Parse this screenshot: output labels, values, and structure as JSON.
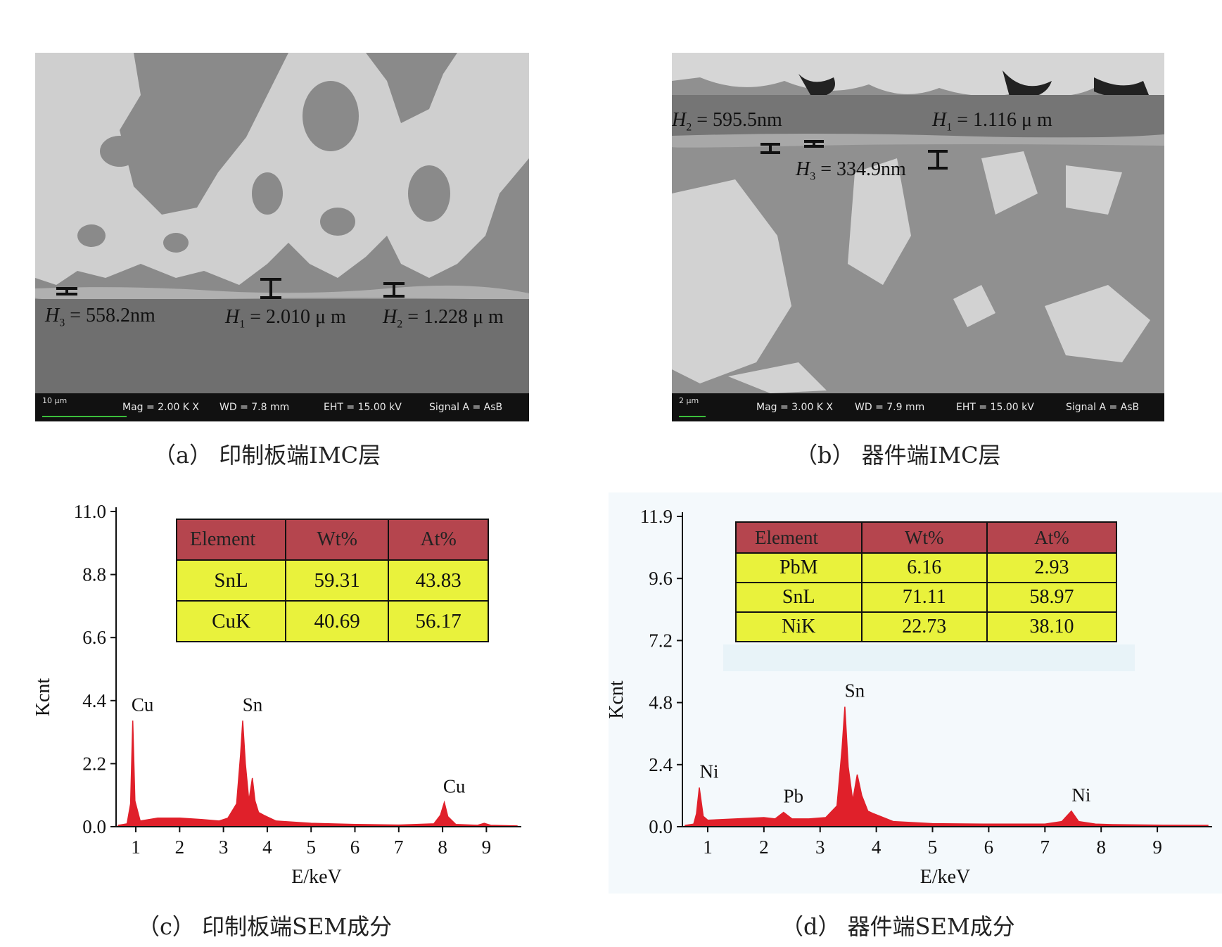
{
  "panels": {
    "a": {
      "caption": "（a）  印制板端IMC层",
      "info": {
        "scale": "10 μm",
        "mag": "Mag =    2.00 K X",
        "wd": "WD =  7.8 mm",
        "eht": "EHT = 15.00 kV",
        "signal": "Signal A = AsB"
      },
      "labels": {
        "h3_var": "H",
        "h3_sub": "3",
        "h3_val": " = 558.2nm",
        "h1_var": "H",
        "h1_sub": "1",
        "h1_val": " = 2.010 μ m",
        "h2_var": "H",
        "h2_sub": "2",
        "h2_val": " = 1.228 μ m"
      }
    },
    "b": {
      "caption": "（b）  器件端IMC层",
      "info": {
        "scale": "2 μm",
        "mag": "Mag =    3.00 K X",
        "wd": "WD =  7.9 mm",
        "eht": "EHT = 15.00 kV",
        "signal": "Signal A = AsB"
      },
      "labels": {
        "h2_var": "H",
        "h2_sub": "2",
        "h2_val": " = 595.5nm",
        "h1_var": "H",
        "h1_sub": "1",
        "h1_val": " = 1.116 μ m",
        "h3_var": "H",
        "h3_sub": "3",
        "h3_val": " = 334.9nm"
      }
    },
    "c": {
      "caption": "（c）  印制板端SEM成分",
      "table": {
        "headers": [
          "Element",
          "Wt%",
          "At%"
        ],
        "rows": [
          [
            "SnL",
            "59.31",
            "43.83"
          ],
          [
            "CuK",
            "40.69",
            "56.17"
          ]
        ]
      }
    },
    "d": {
      "caption": "（d）  器件端SEM成分",
      "table": {
        "headers": [
          "Element",
          "Wt%",
          "At%"
        ],
        "rows": [
          [
            "PbM",
            "6.16",
            "2.93"
          ],
          [
            "SnL",
            "71.11",
            "58.97"
          ],
          [
            "NiK",
            "22.73",
            "38.10"
          ]
        ]
      }
    }
  },
  "chart_data": [
    {
      "type": "line",
      "xlabel": "E/keV",
      "ylabel": "Kcnt",
      "xlim": [
        0.55,
        9.7
      ],
      "ylim": [
        0.0,
        11.0
      ],
      "yticks": [
        "0.0",
        "2.2",
        "4.4",
        "6.6",
        "8.8",
        "11.0"
      ],
      "xticks": [
        "1",
        "2",
        "3",
        "4",
        "5",
        "6",
        "7",
        "8",
        "9"
      ],
      "fill_color": "#e0202a",
      "peaks": [
        {
          "label": "Cu",
          "x": 0.93,
          "y": 3.7
        },
        {
          "label": "Sn",
          "x": 3.44,
          "y": 3.7
        },
        {
          "label": "",
          "x": 3.66,
          "y": 1.7
        },
        {
          "label": "Cu",
          "x": 8.04,
          "y": 0.85
        }
      ],
      "series": [
        {
          "x": [
            0.6,
            0.8,
            0.88,
            0.93,
            0.98,
            1.1,
            1.5,
            2.0,
            2.5,
            2.9,
            3.1,
            3.3,
            3.39,
            3.44,
            3.5,
            3.58,
            3.66,
            3.72,
            3.8,
            3.92,
            4.2,
            5.0,
            6.0,
            7.0,
            7.8,
            7.95,
            8.04,
            8.12,
            8.3,
            8.8,
            8.95,
            9.1,
            9.7
          ],
          "y": [
            0.05,
            0.1,
            0.8,
            3.7,
            0.9,
            0.2,
            0.3,
            0.3,
            0.25,
            0.2,
            0.3,
            0.8,
            2.5,
            3.7,
            2.2,
            0.9,
            1.7,
            0.9,
            0.5,
            0.4,
            0.2,
            0.12,
            0.08,
            0.06,
            0.1,
            0.4,
            0.85,
            0.35,
            0.08,
            0.05,
            0.12,
            0.05,
            0.03
          ]
        }
      ]
    },
    {
      "type": "line",
      "xlabel": "E/keV",
      "ylabel": "Kcnt",
      "xlim": [
        0.55,
        9.9
      ],
      "ylim": [
        0.0,
        11.9
      ],
      "yticks": [
        "0.0",
        "2.4",
        "4.8",
        "7.2",
        "9.6",
        "11.9"
      ],
      "xticks": [
        "1",
        "2",
        "3",
        "4",
        "5",
        "6",
        "7",
        "8",
        "9"
      ],
      "fill_color": "#e0202a",
      "peaks": [
        {
          "label": "Ni",
          "x": 0.85,
          "y": 1.5
        },
        {
          "label": "Pb",
          "x": 2.35,
          "y": 0.55
        },
        {
          "label": "Sn",
          "x": 3.44,
          "y": 4.6
        },
        {
          "label": "",
          "x": 3.66,
          "y": 2.0
        },
        {
          "label": "Ni",
          "x": 7.47,
          "y": 0.6
        }
      ],
      "series": [
        {
          "x": [
            0.6,
            0.75,
            0.8,
            0.85,
            0.92,
            1.0,
            1.5,
            2.0,
            2.2,
            2.35,
            2.5,
            2.8,
            3.1,
            3.3,
            3.39,
            3.44,
            3.5,
            3.58,
            3.66,
            3.74,
            3.85,
            3.95,
            4.3,
            5.0,
            6.0,
            7.0,
            7.3,
            7.47,
            7.6,
            7.9,
            8.2,
            9.0,
            9.9
          ],
          "y": [
            0.05,
            0.1,
            0.5,
            1.5,
            0.4,
            0.25,
            0.3,
            0.35,
            0.3,
            0.55,
            0.3,
            0.3,
            0.35,
            0.8,
            3.0,
            4.6,
            2.3,
            1.0,
            2.0,
            1.2,
            0.6,
            0.5,
            0.2,
            0.12,
            0.1,
            0.1,
            0.2,
            0.6,
            0.2,
            0.1,
            0.08,
            0.06,
            0.05
          ]
        }
      ]
    }
  ]
}
